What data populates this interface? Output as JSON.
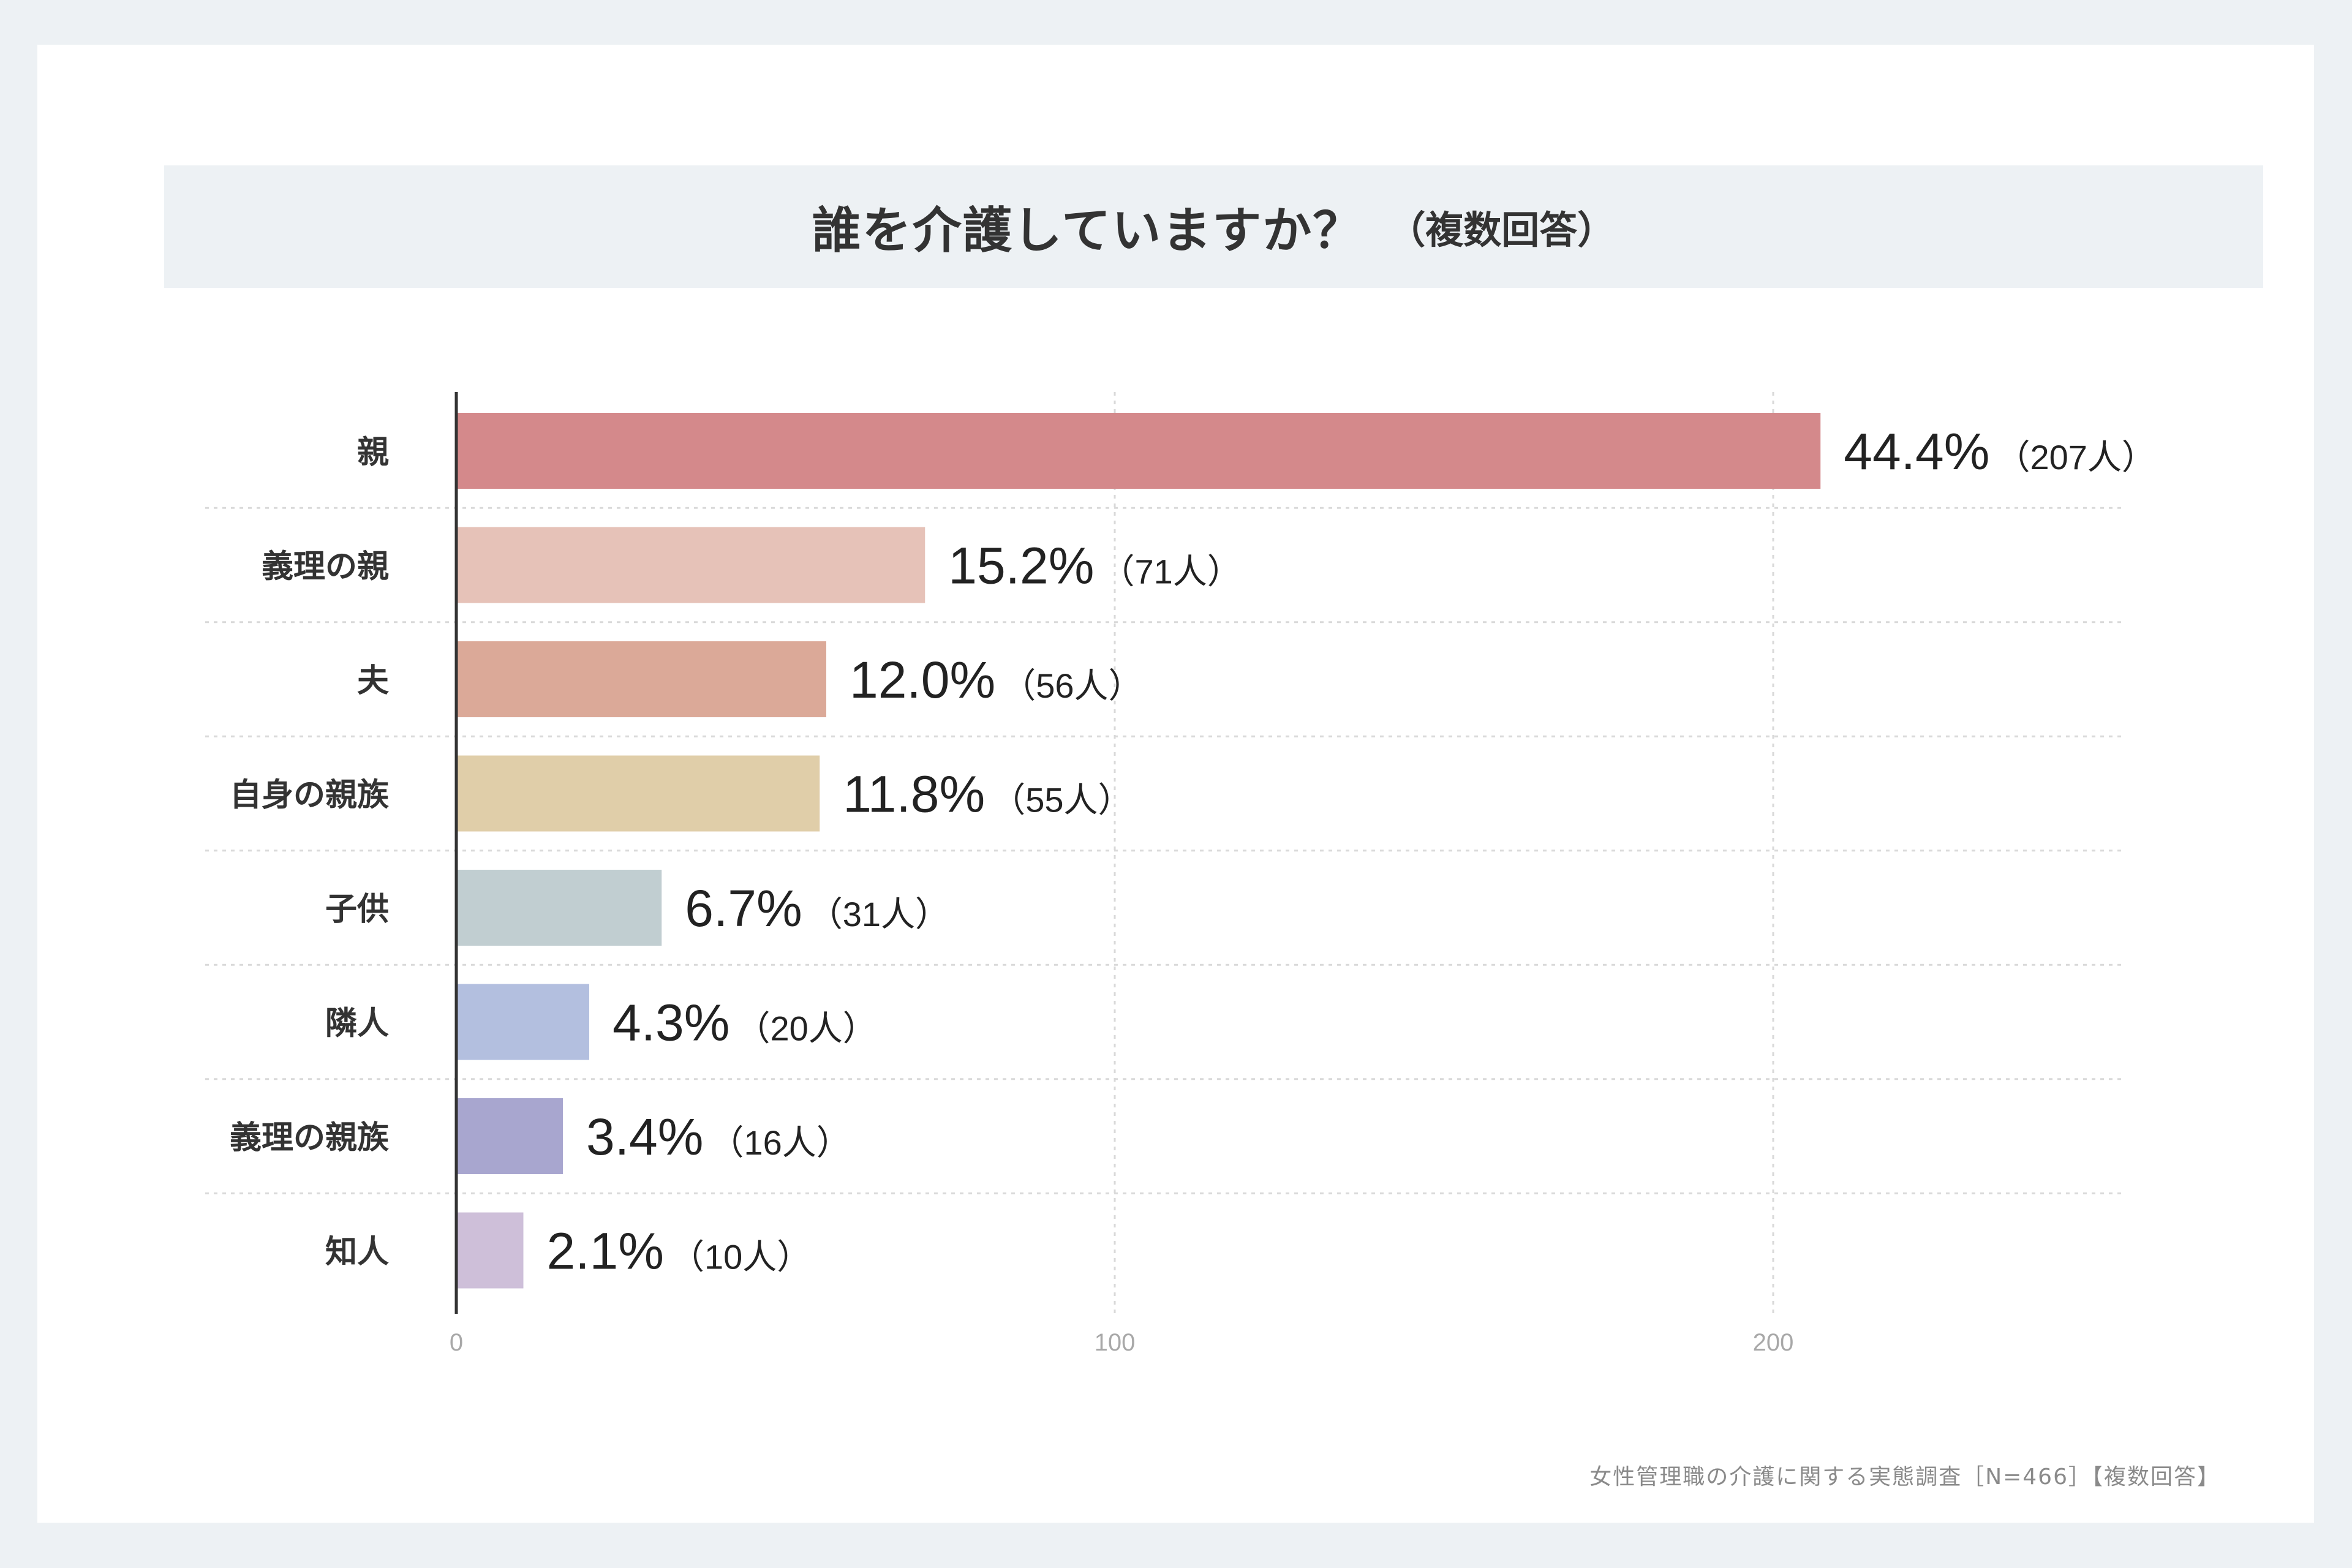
{
  "title": "誰を介護していますか？",
  "subtitle": "（複数回答）",
  "source": "女性管理職の介護に関する実態調査［N=466］【複数回答】",
  "chart_data": {
    "type": "bar",
    "orientation": "horizontal",
    "categories": [
      "親",
      "義理の親",
      "夫",
      "自身の親族",
      "子供",
      "隣人",
      "義理の親族",
      "知人"
    ],
    "values": [
      207,
      71,
      56,
      55,
      31,
      20,
      16,
      10
    ],
    "percent_labels": [
      "44.4%",
      "15.2%",
      "12.0%",
      "11.8%",
      "6.7%",
      "4.3%",
      "3.4%",
      "2.1%"
    ],
    "count_labels": [
      "（207人）",
      "（71人）",
      "（56人）",
      "（55人）",
      "（31人）",
      "（20人）",
      "（16人）",
      "（10人）"
    ],
    "colors": [
      "#d4898b",
      "#e6c2b8",
      "#dba998",
      "#e0cea9",
      "#c1ced1",
      "#b3bfdf",
      "#a8a6cf",
      "#cebfd9"
    ],
    "xlim": [
      0,
      253
    ],
    "xticks": [
      0,
      100,
      200
    ],
    "xtick_labels": [
      "0",
      "100",
      "200"
    ],
    "grid": true
  }
}
